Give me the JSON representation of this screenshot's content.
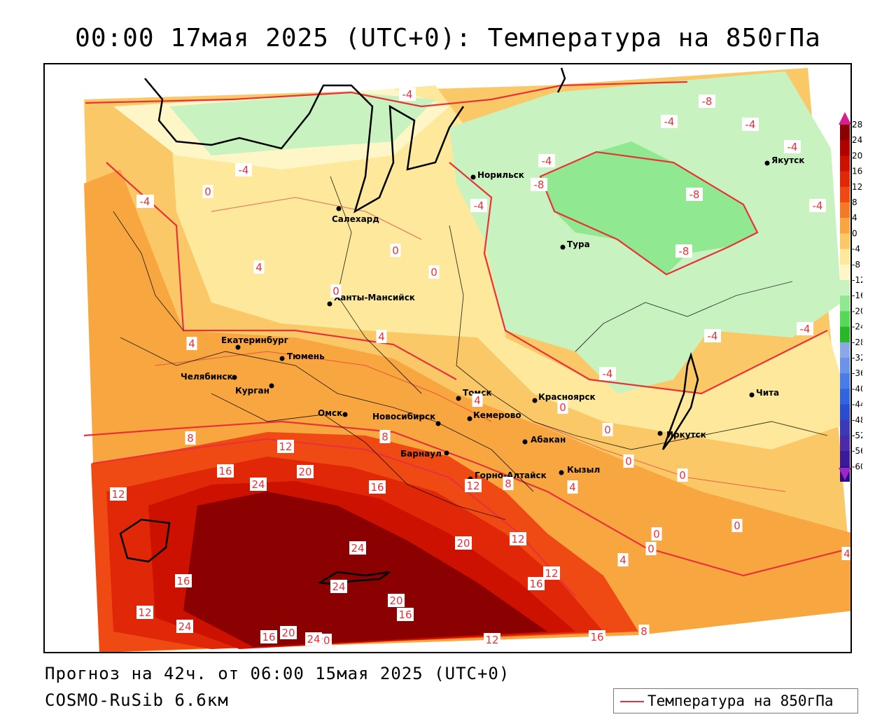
{
  "title": "00:00 17мая 2025 (UTC+0): Температура на 850гПа",
  "forecast_text": "Прогноз на 42ч. от 06:00 15мая 2025 (UTC+0)",
  "model_text": "COSMO-RuSib 6.6км",
  "legend": {
    "label": "Температура на 850гПа",
    "line_color": "#e8323a"
  },
  "color_scale": {
    "ticks": [
      "28",
      "24",
      "20",
      "16",
      "12",
      "8",
      "4",
      "0",
      "-4",
      "-8",
      "-12",
      "-16",
      "-20",
      "-24",
      "-28",
      "-32",
      "-36",
      "-40",
      "-44",
      "-48",
      "-52",
      "-56",
      "-60"
    ],
    "colors": [
      "#8b0000",
      "#b00000",
      "#cc1100",
      "#e02808",
      "#f04a14",
      "#f57a28",
      "#f8a640",
      "#fbc868",
      "#fde89c",
      "#fff6c8",
      "#c8f2c0",
      "#90e890",
      "#58d858",
      "#28b828",
      "#8aa8e8",
      "#6a94e8",
      "#4a7ce8",
      "#3264e0",
      "#2a4cd0",
      "#3a3ab8",
      "#4a2aa8",
      "#3a1a98",
      "#2a0a88",
      "#1a0070"
    ],
    "top_arrow_color": "#d61e8c",
    "bottom_arrow_color": "#9a28c8"
  },
  "cities": [
    {
      "name": "Норильск"
    },
    {
      "name": "Якутск"
    },
    {
      "name": "Салехард"
    },
    {
      "name": "Тура"
    },
    {
      "name": "Ханты-Мансийск"
    },
    {
      "name": "Екатеринбург"
    },
    {
      "name": "Тюмень"
    },
    {
      "name": "Челябинск"
    },
    {
      "name": "Курган"
    },
    {
      "name": "Омск"
    },
    {
      "name": "Новосибирск"
    },
    {
      "name": "Томск"
    },
    {
      "name": "Кемерово"
    },
    {
      "name": "Красноярск"
    },
    {
      "name": "Абакан"
    },
    {
      "name": "Иркутск"
    },
    {
      "name": "Чита"
    },
    {
      "name": "Барнаул"
    },
    {
      "name": "Горно-Алтайск"
    },
    {
      "name": "Кызыл"
    }
  ],
  "isoline_labels": [
    "-4",
    "-4",
    "-8",
    "-4",
    "-4",
    "-4",
    "-4",
    "-4",
    "-4",
    "-8",
    "-8",
    "-8",
    "-4",
    "-4",
    "-4",
    "-4",
    "-4",
    "4",
    "4",
    "0",
    "0",
    "0",
    "0",
    "4",
    "4",
    "8",
    "12",
    "20",
    "16",
    "24",
    "12",
    "16",
    "4",
    "0",
    "0",
    "0",
    "0",
    "0",
    "0",
    "0",
    "12",
    "4",
    "8",
    "8",
    "12",
    "20",
    "16",
    "24",
    "12",
    "16",
    "24",
    "20",
    "16",
    "12",
    "24",
    "20",
    "16",
    "8",
    "12",
    "16",
    "20",
    "24",
    "4"
  ]
}
